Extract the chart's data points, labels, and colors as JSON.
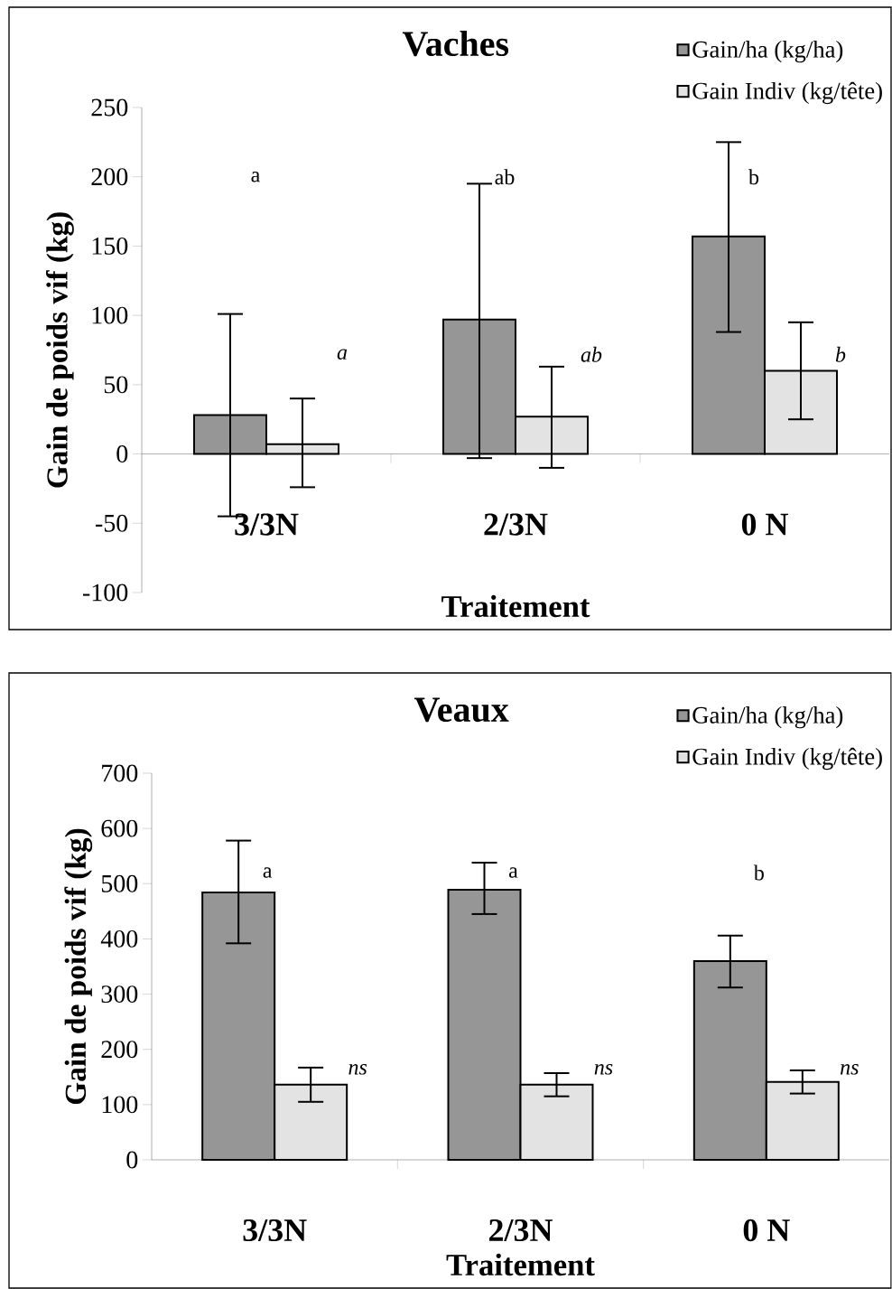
{
  "chart_data": [
    {
      "type": "bar",
      "title": "Vaches",
      "xlabel": "Traitement",
      "ylabel": "Gain de poids vif (kg)",
      "categories": [
        "3/3N",
        "2/3N",
        "0 N"
      ],
      "series": [
        {
          "name": "Gain/ha (kg/ha)",
          "color": "#969696",
          "values": [
            28,
            97,
            157
          ],
          "errors": [
            [
              -45,
              101
            ],
            [
              -3,
              195
            ],
            [
              88,
              225
            ]
          ]
        },
        {
          "name": "Gain Indiv (kg/tête)",
          "color": "#e3e3e3",
          "values": [
            7,
            27,
            60
          ],
          "errors": [
            [
              -24,
              40
            ],
            [
              -10,
              63
            ],
            [
              25,
              95
            ]
          ]
        }
      ],
      "ylim": [
        -100,
        250
      ],
      "yticks": [
        -100,
        -50,
        0,
        50,
        100,
        150,
        200,
        250
      ],
      "legend": "top right",
      "annotations": [
        "a",
        "*a*",
        "ab",
        "*ab*",
        "b",
        "*b*"
      ]
    },
    {
      "type": "bar",
      "title": "Veaux",
      "xlabel": "Traitement",
      "ylabel": "Gain de poids vif (kg)",
      "categories": [
        "3/3N",
        "2/3N",
        "0 N"
      ],
      "series": [
        {
          "name": "Gain/ha (kg/ha)",
          "color": "#969696",
          "values": [
            484,
            489,
            360
          ],
          "errors": [
            [
              392,
              578
            ],
            [
              445,
              538
            ],
            [
              312,
              406
            ]
          ]
        },
        {
          "name": "Gain Indiv (kg/tête)",
          "color": "#e3e3e3",
          "values": [
            136,
            136,
            141
          ],
          "errors": [
            [
              105,
              167
            ],
            [
              115,
              157
            ],
            [
              120,
              162
            ]
          ]
        }
      ],
      "ylim": [
        0,
        700
      ],
      "yticks": [
        0,
        100,
        200,
        300,
        400,
        500,
        600,
        700
      ],
      "legend": "top right",
      "annotations": [
        "a",
        "*ns*",
        "a",
        "*ns*",
        "b",
        "*ns*"
      ]
    }
  ]
}
